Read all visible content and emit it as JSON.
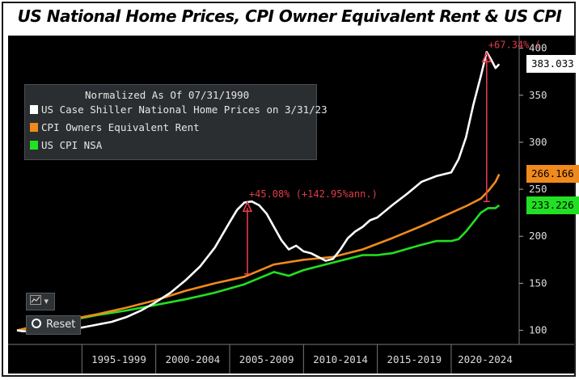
{
  "title": "US National Home Prices, CPI Owner Equivalent Rent & US CPI",
  "legend": {
    "heading": "Normalized As Of 07/31/1990",
    "items": [
      {
        "label": "US Case Shiller National Home Prices on 3/31/23",
        "color": "#ffffff"
      },
      {
        "label": "CPI Owners Equivalent Rent",
        "color": "#f08a1c"
      },
      {
        "label": "US CPI NSA",
        "color": "#22e022"
      }
    ]
  },
  "controls": {
    "reset_label": "Reset",
    "chart_tool_icon": "line-chart-icon"
  },
  "chart_data": {
    "type": "line",
    "x_unit": "year",
    "xlim": [
      1990.0,
      2024.6
    ],
    "ylim": [
      85,
      410
    ],
    "y_ticks": [
      100,
      150,
      200,
      250,
      300,
      350,
      400
    ],
    "x_category_labels": [
      {
        "label": "1995-1999",
        "start": 1995,
        "end": 2000
      },
      {
        "label": "2000-2004",
        "start": 2000,
        "end": 2005
      },
      {
        "label": "2005-2009",
        "start": 2005,
        "end": 2010
      },
      {
        "label": "2010-2014",
        "start": 2010,
        "end": 2015
      },
      {
        "label": "2015-2019",
        "start": 2015,
        "end": 2020
      },
      {
        "label": "2020-2024",
        "start": 2020,
        "end": 2025
      }
    ],
    "grid": false,
    "legend_position": "top-left",
    "series": [
      {
        "name": "US Case Shiller National Home Prices on 3/31/23",
        "color": "#ffffff",
        "end_label": "383.033",
        "points": [
          [
            1990.6,
            100
          ],
          [
            1991.0,
            99
          ],
          [
            1992.0,
            99
          ],
          [
            1993.0,
            100
          ],
          [
            1994.0,
            101
          ],
          [
            1995.0,
            103
          ],
          [
            1996.0,
            106
          ],
          [
            1997.0,
            109
          ],
          [
            1998.0,
            114
          ],
          [
            1999.0,
            121
          ],
          [
            2000.0,
            130
          ],
          [
            2001.0,
            140
          ],
          [
            2002.0,
            153
          ],
          [
            2003.0,
            168
          ],
          [
            2004.0,
            188
          ],
          [
            2005.0,
            215
          ],
          [
            2005.5,
            228
          ],
          [
            2006.0,
            236
          ],
          [
            2006.5,
            237
          ],
          [
            2007.0,
            233
          ],
          [
            2007.5,
            224
          ],
          [
            2008.0,
            210
          ],
          [
            2008.5,
            196
          ],
          [
            2009.0,
            186
          ],
          [
            2009.5,
            190
          ],
          [
            2010.0,
            184
          ],
          [
            2010.5,
            182
          ],
          [
            2011.0,
            178
          ],
          [
            2011.5,
            174
          ],
          [
            2012.0,
            176
          ],
          [
            2012.5,
            186
          ],
          [
            2013.0,
            198
          ],
          [
            2013.5,
            205
          ],
          [
            2014.0,
            210
          ],
          [
            2014.5,
            217
          ],
          [
            2015.0,
            220
          ],
          [
            2016.0,
            233
          ],
          [
            2017.0,
            245
          ],
          [
            2018.0,
            258
          ],
          [
            2019.0,
            264
          ],
          [
            2020.0,
            268
          ],
          [
            2020.5,
            282
          ],
          [
            2021.0,
            305
          ],
          [
            2021.5,
            340
          ],
          [
            2022.0,
            370
          ],
          [
            2022.4,
            396
          ],
          [
            2022.7,
            388
          ],
          [
            2023.0,
            379
          ],
          [
            2023.25,
            383
          ]
        ]
      },
      {
        "name": "CPI Owners Equivalent Rent",
        "color": "#f08a1c",
        "end_label": "266.166",
        "points": [
          [
            1990.6,
            100
          ],
          [
            1992.0,
            105
          ],
          [
            1994.0,
            111
          ],
          [
            1996.0,
            117
          ],
          [
            1998.0,
            124
          ],
          [
            2000.0,
            132
          ],
          [
            2002.0,
            142
          ],
          [
            2004.0,
            150
          ],
          [
            2006.0,
            157
          ],
          [
            2008.0,
            170
          ],
          [
            2010.0,
            175
          ],
          [
            2012.0,
            178
          ],
          [
            2014.0,
            186
          ],
          [
            2016.0,
            198
          ],
          [
            2018.0,
            211
          ],
          [
            2020.0,
            225
          ],
          [
            2021.0,
            232
          ],
          [
            2022.0,
            240
          ],
          [
            2022.5,
            248
          ],
          [
            2023.0,
            258
          ],
          [
            2023.25,
            266
          ]
        ]
      },
      {
        "name": "US CPI NSA",
        "color": "#22e022",
        "end_label": "233.226",
        "points": [
          [
            1990.6,
            100
          ],
          [
            1992.0,
            104
          ],
          [
            1994.0,
            110
          ],
          [
            1996.0,
            116
          ],
          [
            1998.0,
            121
          ],
          [
            2000.0,
            127
          ],
          [
            2002.0,
            133
          ],
          [
            2004.0,
            140
          ],
          [
            2006.0,
            149
          ],
          [
            2008.0,
            162
          ],
          [
            2009.0,
            158
          ],
          [
            2010.0,
            164
          ],
          [
            2012.0,
            172
          ],
          [
            2014.0,
            180
          ],
          [
            2015.0,
            180
          ],
          [
            2016.0,
            182
          ],
          [
            2018.0,
            191
          ],
          [
            2019.0,
            195
          ],
          [
            2020.0,
            195
          ],
          [
            2020.5,
            197
          ],
          [
            2021.0,
            205
          ],
          [
            2021.5,
            215
          ],
          [
            2022.0,
            225
          ],
          [
            2022.5,
            230
          ],
          [
            2023.0,
            230
          ],
          [
            2023.25,
            233
          ]
        ]
      }
    ],
    "annotations": [
      {
        "text": "+45.08% (+142.95%ann.)",
        "x": 2006.2,
        "y_from": 160,
        "y_to": 237,
        "color": "#e23a4a"
      },
      {
        "text": "+67.34% (",
        "x": 2022.4,
        "y_from": 237,
        "y_to": 396,
        "color": "#e23a4a"
      }
    ]
  }
}
